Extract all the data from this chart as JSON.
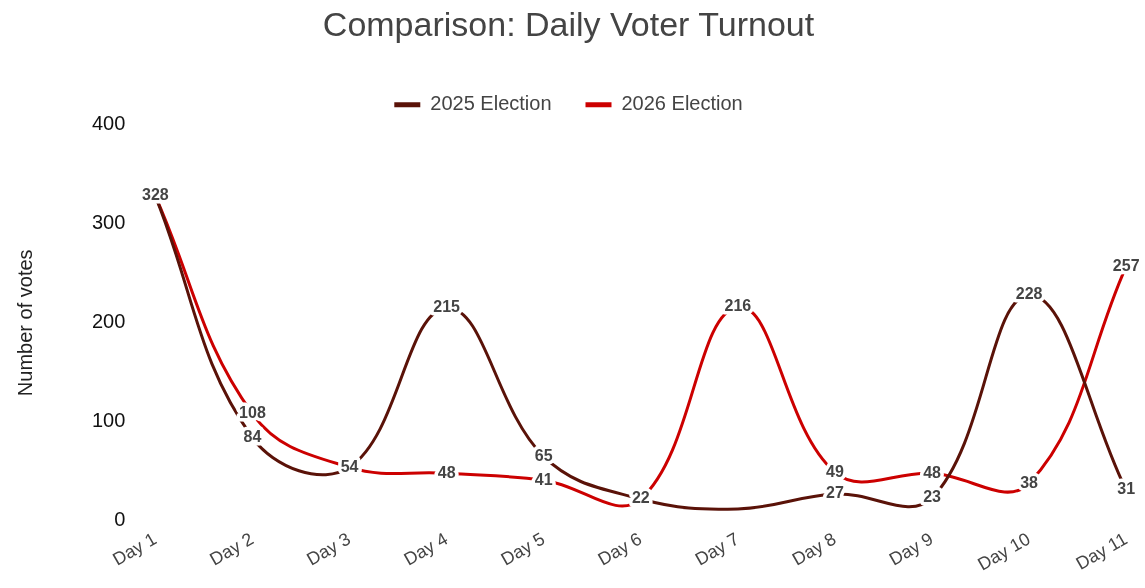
{
  "chart_data": {
    "type": "line",
    "title": "Comparison: Daily Voter Turnout",
    "ylabel": "Number of votes",
    "categories": [
      "Day 1",
      "Day 2",
      "Day 3",
      "Day 4",
      "Day 5",
      "Day 6",
      "Day 7",
      "Day 8",
      "Day 9",
      "Day 10",
      "Day 11"
    ],
    "series": [
      {
        "name": "2025 Election",
        "color": "#5a1208",
        "values": [
          328,
          84,
          54,
          215,
          65,
          22,
          12,
          27,
          23,
          228,
          31
        ],
        "value_labels": [
          null,
          "84",
          null,
          "215",
          "65",
          null,
          null,
          "27",
          "23",
          "228",
          "31"
        ]
      },
      {
        "name": "2026 Election",
        "color": "#cc0000",
        "values": [
          328,
          108,
          54,
          48,
          41,
          22,
          216,
          49,
          48,
          38,
          257
        ],
        "value_labels": [
          "328",
          "108",
          "54",
          "48",
          "41",
          "22",
          "216",
          "49",
          "48",
          "38",
          "257"
        ]
      }
    ],
    "ylim": [
      0,
      400
    ],
    "yticks": [
      0,
      100,
      200,
      300,
      400
    ],
    "grid": false,
    "legend": "top",
    "marker": "none",
    "line_style": "solid"
  }
}
